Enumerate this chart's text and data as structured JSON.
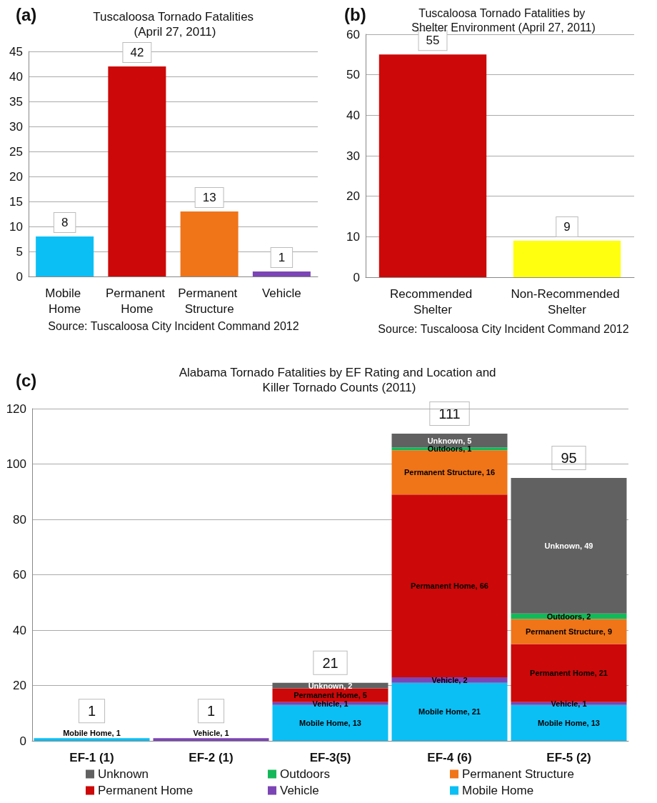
{
  "chart_data": [
    {
      "type": "bar",
      "title": "Tuscaloosa Tornado Fatalities (April 27, 2011)",
      "annotations": [
        "(a)",
        "Source: Tuscaloosa City Incident Command 2012"
      ],
      "categories": [
        "Mobile Home",
        "Permanent Home",
        "Permanent Structure",
        "Vehicle"
      ],
      "values": [
        8,
        42,
        13,
        1
      ],
      "colors": [
        "#0bbff5",
        "#cc0808",
        "#f07418",
        "#7c45b5"
      ],
      "ylim": [
        0,
        45
      ],
      "yticks": [
        0,
        5,
        10,
        15,
        20,
        25,
        30,
        35,
        40,
        45
      ],
      "grid": "y",
      "data_labels": true
    },
    {
      "type": "bar",
      "title": "Tuscaloosa Tornado Fatalities by Shelter Environment (April 27, 2011)",
      "annotations": [
        "(b)",
        "Source: Tuscaloosa City Incident Command 2012"
      ],
      "categories": [
        "Recommended Shelter",
        "Non-Recommended Shelter"
      ],
      "values": [
        55,
        9
      ],
      "colors": [
        "#cc0808",
        "#ffff10"
      ],
      "ylim": [
        0,
        60
      ],
      "yticks": [
        0,
        10,
        20,
        30,
        40,
        50,
        60
      ],
      "grid": "y",
      "data_labels": true
    },
    {
      "type": "bar",
      "stacked": true,
      "title": "Alabama Tornado Fatalities by EF Rating and Location and Killer Tornado Counts (2011)",
      "annotations": [
        "(c)"
      ],
      "categories": [
        "EF-1 (1)",
        "EF-2 (1)",
        "EF-3(5)",
        "EF-4 (6)",
        "EF-5 (2)"
      ],
      "series": [
        {
          "name": "Mobile Home",
          "color": "#0bbff5",
          "values": [
            1,
            null,
            13,
            21,
            13
          ],
          "value_labels": [
            "Mobile Home, 1",
            null,
            "Mobile Home, 13",
            "Mobile Home, 21",
            "Mobile Home, 13"
          ]
        },
        {
          "name": "Vehicle",
          "color": "#7c45b5",
          "values": [
            null,
            1,
            1,
            2,
            1
          ],
          "value_labels": [
            null,
            "Vehicle, 1",
            "Vehicle, 1",
            "Vehicle, 2",
            "Vehicle, 1"
          ]
        },
        {
          "name": "Permanent Home",
          "color": "#cc0808",
          "values": [
            null,
            null,
            5,
            66,
            21
          ],
          "value_labels": [
            null,
            null,
            "Permanent Home, 5",
            "Permanent Home, 66",
            "Permanent Home, 21"
          ]
        },
        {
          "name": "Permanent Structure",
          "color": "#f07418",
          "values": [
            null,
            null,
            null,
            16,
            9
          ],
          "value_labels": [
            null,
            null,
            null,
            "Permanent Structure, 16",
            "Permanent Structure, 9"
          ]
        },
        {
          "name": "Outdoors",
          "color": "#14b85a",
          "values": [
            null,
            null,
            null,
            1,
            2
          ],
          "value_labels": [
            null,
            null,
            null,
            "Outdoors, 1",
            "Outdoors, 2"
          ]
        },
        {
          "name": "Unknown",
          "color": "#616161",
          "values": [
            null,
            null,
            2,
            5,
            49
          ],
          "value_labels": [
            null,
            null,
            "Unknown, 2",
            "Unknown, 5",
            "Unknown, 49"
          ]
        }
      ],
      "totals": [
        "1",
        "1",
        "21",
        "111",
        "95"
      ],
      "ylim": [
        0,
        120
      ],
      "yticks": [
        0,
        20,
        40,
        60,
        80,
        100,
        120
      ],
      "grid": "y",
      "legend": "bottom"
    }
  ]
}
